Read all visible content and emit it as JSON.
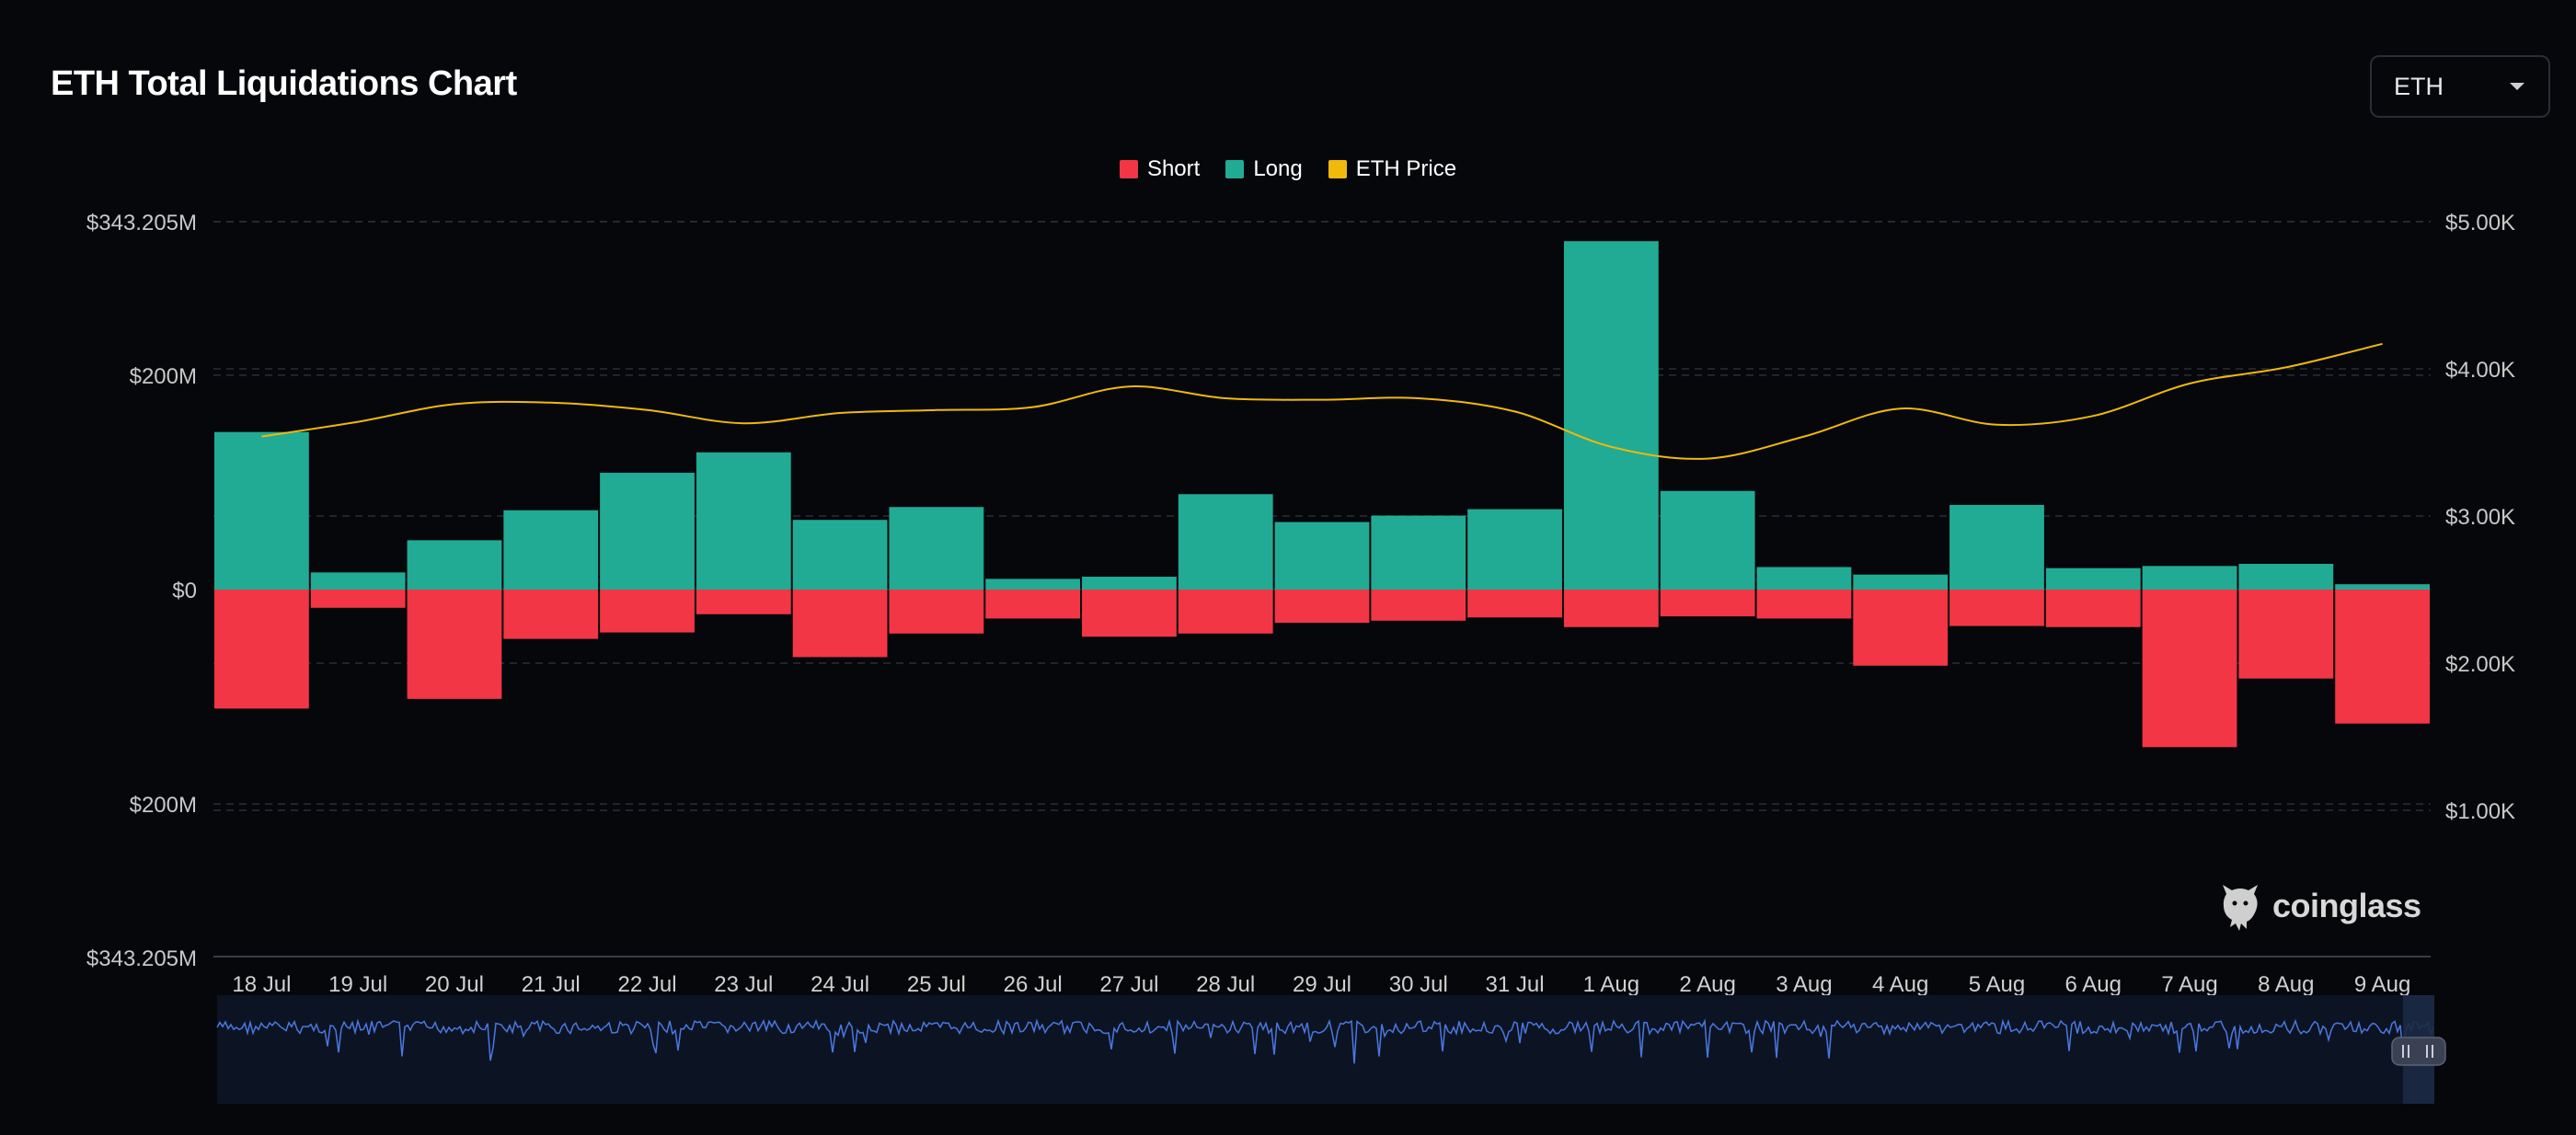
{
  "header": {
    "title": "ETH Total Liquidations Chart",
    "coin_select": {
      "value": "ETH"
    }
  },
  "legend": [
    {
      "label": "Short",
      "color": "#f23645"
    },
    {
      "label": "Long",
      "color": "#22ab94"
    },
    {
      "label": "ETH Price",
      "color": "#f0b90b"
    }
  ],
  "watermark": {
    "text": "coinglass"
  },
  "chart_data": {
    "type": "bar",
    "title": "ETH Total Liquidations Chart",
    "categories": [
      "18 Jul",
      "19 Jul",
      "20 Jul",
      "21 Jul",
      "22 Jul",
      "23 Jul",
      "24 Jul",
      "25 Jul",
      "26 Jul",
      "27 Jul",
      "28 Jul",
      "29 Jul",
      "30 Jul",
      "31 Jul",
      "1 Aug",
      "2 Aug",
      "3 Aug",
      "4 Aug",
      "5 Aug",
      "6 Aug",
      "7 Aug",
      "8 Aug",
      "9 Aug"
    ],
    "series": [
      {
        "name": "Long",
        "color": "#22ab94",
        "values": [
          147,
          16,
          46,
          74,
          109,
          128,
          65,
          77,
          10,
          12,
          89,
          63,
          69,
          75,
          325,
          92,
          21,
          14,
          79,
          20,
          22,
          24,
          5
        ]
      },
      {
        "name": "Short",
        "color": "#f23645",
        "values": [
          -111,
          -17,
          -102,
          -46,
          -40,
          -23,
          -63,
          -41,
          -27,
          -44,
          -41,
          -31,
          -29,
          -26,
          -35,
          -25,
          -27,
          -71,
          -34,
          -35,
          -147,
          -83,
          -125
        ]
      },
      {
        "name": "ETH Price",
        "color": "#f0b90b",
        "axis": "right",
        "values": [
          3540,
          3640,
          3760,
          3770,
          3720,
          3630,
          3700,
          3720,
          3740,
          3880,
          3800,
          3790,
          3800,
          3710,
          3470,
          3390,
          3540,
          3730,
          3620,
          3680,
          3900,
          4010,
          4170
        ]
      }
    ],
    "y_left": {
      "ylim": [
        -343.205,
        343.205
      ],
      "ticks": [
        {
          "value": 343.205,
          "label": "$343.205M"
        },
        {
          "value": 200,
          "label": "$200M"
        },
        {
          "value": 0,
          "label": "$0"
        },
        {
          "value": -200,
          "label": "$200M"
        },
        {
          "value": -343.205,
          "label": "$343.205M"
        }
      ]
    },
    "y_right": {
      "ylim": [
        0,
        5000
      ],
      "ticks": [
        {
          "value": 5000,
          "label": "$5.00K"
        },
        {
          "value": 4000,
          "label": "$4.00K"
        },
        {
          "value": 3000,
          "label": "$3.00K"
        },
        {
          "value": 2000,
          "label": "$2.00K"
        },
        {
          "value": 1000,
          "label": "$1.00K"
        }
      ]
    },
    "grid": true,
    "legend_position": "top-center"
  }
}
